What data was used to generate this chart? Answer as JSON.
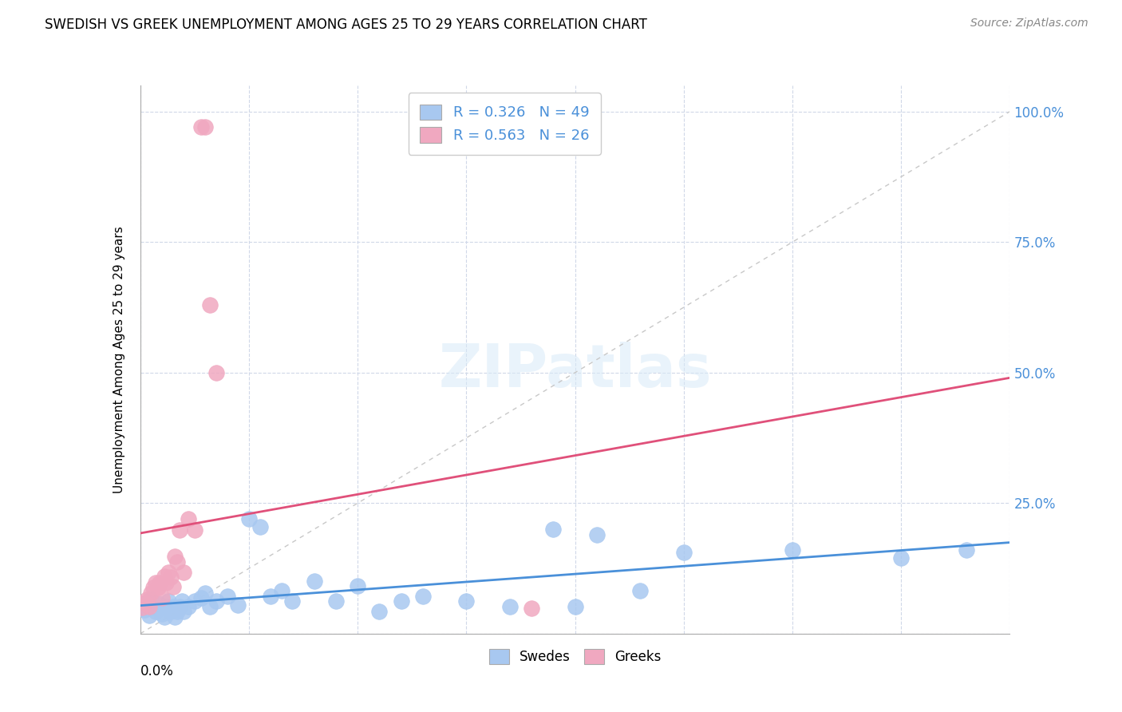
{
  "title": "SWEDISH VS GREEK UNEMPLOYMENT AMONG AGES 25 TO 29 YEARS CORRELATION CHART",
  "source": "Source: ZipAtlas.com",
  "ylabel": "Unemployment Among Ages 25 to 29 years",
  "yticks": [
    0.0,
    0.25,
    0.5,
    0.75,
    1.0
  ],
  "ytick_labels": [
    "",
    "25.0%",
    "50.0%",
    "75.0%",
    "100.0%"
  ],
  "legend_swedes": "Swedes",
  "legend_greeks": "Greeks",
  "R_swedes": 0.326,
  "N_swedes": 49,
  "R_greeks": 0.563,
  "N_greeks": 26,
  "swedes_color": "#a8c8f0",
  "greeks_color": "#f0a8c0",
  "swedes_line_color": "#4a90d9",
  "greeks_line_color": "#e0507a",
  "diagonal_color": "#c8c8c8",
  "background_color": "#ffffff",
  "swedes_x": [
    0.001,
    0.002,
    0.003,
    0.004,
    0.005,
    0.006,
    0.007,
    0.008,
    0.009,
    0.01,
    0.011,
    0.012,
    0.013,
    0.014,
    0.015,
    0.016,
    0.017,
    0.018,
    0.019,
    0.02,
    0.022,
    0.025,
    0.028,
    0.03,
    0.032,
    0.035,
    0.04,
    0.045,
    0.05,
    0.055,
    0.06,
    0.065,
    0.07,
    0.08,
    0.09,
    0.1,
    0.11,
    0.12,
    0.13,
    0.15,
    0.17,
    0.19,
    0.2,
    0.21,
    0.23,
    0.25,
    0.3,
    0.35,
    0.38
  ],
  "swedes_y": [
    0.055,
    0.045,
    0.06,
    0.035,
    0.065,
    0.05,
    0.042,
    0.058,
    0.048,
    0.038,
    0.032,
    0.052,
    0.062,
    0.042,
    0.052,
    0.032,
    0.042,
    0.052,
    0.062,
    0.042,
    0.052,
    0.062,
    0.068,
    0.078,
    0.052,
    0.062,
    0.072,
    0.055,
    0.22,
    0.205,
    0.072,
    0.082,
    0.062,
    0.1,
    0.062,
    0.092,
    0.042,
    0.062,
    0.072,
    0.062,
    0.052,
    0.2,
    0.052,
    0.19,
    0.082,
    0.155,
    0.16,
    0.145,
    0.16
  ],
  "greeks_x": [
    0.001,
    0.002,
    0.003,
    0.004,
    0.005,
    0.006,
    0.007,
    0.008,
    0.009,
    0.01,
    0.011,
    0.012,
    0.013,
    0.014,
    0.015,
    0.016,
    0.017,
    0.018,
    0.02,
    0.022,
    0.025,
    0.028,
    0.03,
    0.032,
    0.035,
    0.18
  ],
  "greeks_y": [
    0.05,
    0.06,
    0.065,
    0.052,
    0.078,
    0.088,
    0.098,
    0.088,
    0.098,
    0.068,
    0.11,
    0.098,
    0.118,
    0.108,
    0.09,
    0.148,
    0.138,
    0.198,
    0.118,
    0.22,
    0.198,
    0.97,
    0.97,
    0.63,
    0.5,
    0.048
  ]
}
